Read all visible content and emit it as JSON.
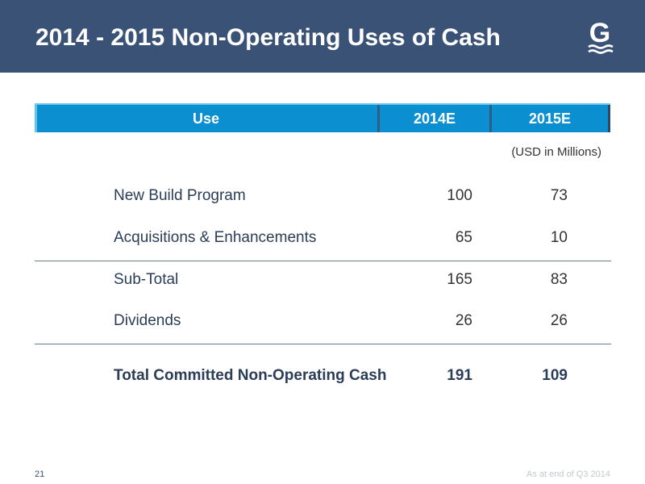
{
  "slide": {
    "title": "2014 - 2015 Non-Operating Uses of Cash",
    "page_number": "21",
    "footnote": "As at end of Q3 2014",
    "unit_note": "(USD in Millions)"
  },
  "logo": {
    "icon": "company-logo-icon",
    "letter": "G"
  },
  "table": {
    "headers": {
      "use": "Use",
      "col1": "2014E",
      "col2": "2015E"
    },
    "rows": [
      {
        "label": "New Build Program",
        "v2014": "100",
        "v2015": "73"
      },
      {
        "label": "Acquisitions & Enhancements",
        "v2014": "65",
        "v2015": "10"
      },
      {
        "label": "Sub-Total",
        "v2014": "165",
        "v2015": "83"
      },
      {
        "label": "Dividends",
        "v2014": "26",
        "v2015": "26"
      },
      {
        "label": "Total Committed Non-Operating Cash",
        "v2014": "191",
        "v2015": "109"
      }
    ]
  },
  "colors": {
    "header_band": "#3a5275",
    "table_header": "#0b8fd0",
    "text_dark": "#2b3d57"
  }
}
